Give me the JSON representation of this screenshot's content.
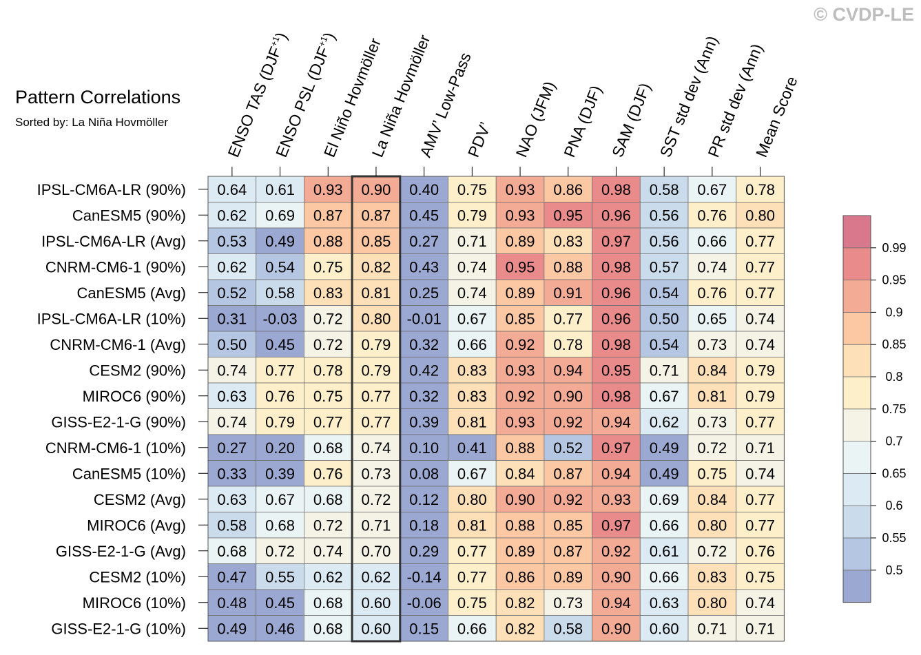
{
  "header": {
    "title": "Pattern Correlations",
    "subtitle": "Sorted by: La Niña Hovmöller",
    "watermark": "© CVDP-LE"
  },
  "chart_data": {
    "type": "heatmap",
    "title": "Pattern Correlations",
    "subtitle": "Sorted by: La Niña Hovmöller",
    "columns": [
      {
        "base": "ENSO TAS (DJF",
        "sup": "+1",
        "end": ")"
      },
      {
        "base": "ENSO PSL (DJF",
        "sup": "+1",
        "end": ")"
      },
      {
        "base": "El Niño Hovmöller"
      },
      {
        "base": "La Niña Hovmöller"
      },
      {
        "base": "AMV’ Low-Pass"
      },
      {
        "base": "PDV’"
      },
      {
        "base": "NAO (JFM)"
      },
      {
        "base": "PNA (DJF)"
      },
      {
        "base": "SAM (DJF)"
      },
      {
        "base": "SST std dev (Ann)"
      },
      {
        "base": "PR std dev (Ann)"
      },
      {
        "base": "Mean Score"
      }
    ],
    "highlighted_column": "La Niña Hovmöller",
    "rows": [
      "IPSL-CM6A-LR (90%)",
      "CanESM5 (90%)",
      "IPSL-CM6A-LR (Avg)",
      "CNRM-CM6-1 (90%)",
      "CanESM5 (Avg)",
      "IPSL-CM6A-LR (10%)",
      "CNRM-CM6-1 (Avg)",
      "CESM2 (90%)",
      "MIROC6 (90%)",
      "GISS-E2-1-G (90%)",
      "CNRM-CM6-1 (10%)",
      "CanESM5 (10%)",
      "CESM2 (Avg)",
      "MIROC6 (Avg)",
      "GISS-E2-1-G (Avg)",
      "CESM2 (10%)",
      "MIROC6 (10%)",
      "GISS-E2-1-G (10%)"
    ],
    "values": [
      [
        0.64,
        0.61,
        0.93,
        0.9,
        0.4,
        0.75,
        0.93,
        0.86,
        0.98,
        0.58,
        0.67,
        0.78
      ],
      [
        0.62,
        0.69,
        0.87,
        0.87,
        0.45,
        0.79,
        0.93,
        0.95,
        0.96,
        0.56,
        0.76,
        0.8
      ],
      [
        0.53,
        0.49,
        0.88,
        0.85,
        0.27,
        0.71,
        0.89,
        0.83,
        0.97,
        0.56,
        0.66,
        0.77
      ],
      [
        0.62,
        0.54,
        0.75,
        0.82,
        0.43,
        0.74,
        0.95,
        0.88,
        0.98,
        0.57,
        0.74,
        0.77
      ],
      [
        0.52,
        0.58,
        0.83,
        0.81,
        0.25,
        0.74,
        0.89,
        0.91,
        0.96,
        0.54,
        0.76,
        0.77
      ],
      [
        0.31,
        -0.03,
        0.72,
        0.8,
        -0.01,
        0.67,
        0.85,
        0.77,
        0.96,
        0.5,
        0.65,
        0.74
      ],
      [
        0.5,
        0.45,
        0.72,
        0.79,
        0.32,
        0.66,
        0.92,
        0.78,
        0.98,
        0.54,
        0.73,
        0.74
      ],
      [
        0.74,
        0.77,
        0.78,
        0.79,
        0.42,
        0.83,
        0.93,
        0.94,
        0.95,
        0.71,
        0.84,
        0.79
      ],
      [
        0.63,
        0.76,
        0.75,
        0.77,
        0.32,
        0.83,
        0.92,
        0.9,
        0.98,
        0.67,
        0.81,
        0.79
      ],
      [
        0.74,
        0.79,
        0.77,
        0.77,
        0.39,
        0.81,
        0.93,
        0.92,
        0.94,
        0.62,
        0.73,
        0.77
      ],
      [
        0.27,
        0.2,
        0.68,
        0.74,
        0.1,
        0.41,
        0.88,
        0.52,
        0.97,
        0.49,
        0.72,
        0.71
      ],
      [
        0.33,
        0.39,
        0.76,
        0.73,
        0.08,
        0.67,
        0.84,
        0.87,
        0.94,
        0.49,
        0.75,
        0.74
      ],
      [
        0.63,
        0.67,
        0.68,
        0.72,
        0.12,
        0.8,
        0.9,
        0.92,
        0.93,
        0.69,
        0.84,
        0.77
      ],
      [
        0.58,
        0.68,
        0.72,
        0.71,
        0.18,
        0.81,
        0.88,
        0.85,
        0.97,
        0.66,
        0.8,
        0.77
      ],
      [
        0.68,
        0.72,
        0.74,
        0.7,
        0.29,
        0.77,
        0.89,
        0.87,
        0.92,
        0.61,
        0.72,
        0.76
      ],
      [
        0.47,
        0.55,
        0.62,
        0.62,
        -0.14,
        0.77,
        0.86,
        0.89,
        0.9,
        0.66,
        0.83,
        0.75
      ],
      [
        0.48,
        0.45,
        0.68,
        0.6,
        -0.06,
        0.75,
        0.82,
        0.73,
        0.94,
        0.63,
        0.8,
        0.74
      ],
      [
        0.49,
        0.46,
        0.68,
        0.6,
        0.15,
        0.66,
        0.82,
        0.58,
        0.9,
        0.6,
        0.71,
        0.71
      ]
    ],
    "value_labels": [
      [
        "0.64",
        "0.61",
        "0.93",
        "0.90",
        "0.40",
        "0.75",
        "0.93",
        "0.86",
        "0.98",
        "0.58",
        "0.67",
        "0.78"
      ],
      [
        "0.62",
        "0.69",
        "0.87",
        "0.87",
        "0.45",
        "0.79",
        "0.93",
        "0.95",
        "0.96",
        "0.56",
        "0.76",
        "0.80"
      ],
      [
        "0.53",
        "0.49",
        "0.88",
        "0.85",
        "0.27",
        "0.71",
        "0.89",
        "0.83",
        "0.97",
        "0.56",
        "0.66",
        "0.77"
      ],
      [
        "0.62",
        "0.54",
        "0.75",
        "0.82",
        "0.43",
        "0.74",
        "0.95",
        "0.88",
        "0.98",
        "0.57",
        "0.74",
        "0.77"
      ],
      [
        "0.52",
        "0.58",
        "0.83",
        "0.81",
        "0.25",
        "0.74",
        "0.89",
        "0.91",
        "0.96",
        "0.54",
        "0.76",
        "0.77"
      ],
      [
        "0.31",
        "-0.03",
        "0.72",
        "0.80",
        "-0.01",
        "0.67",
        "0.85",
        "0.77",
        "0.96",
        "0.50",
        "0.65",
        "0.74"
      ],
      [
        "0.50",
        "0.45",
        "0.72",
        "0.79",
        "0.32",
        "0.66",
        "0.92",
        "0.78",
        "0.98",
        "0.54",
        "0.73",
        "0.74"
      ],
      [
        "0.74",
        "0.77",
        "0.78",
        "0.79",
        "0.42",
        "0.83",
        "0.93",
        "0.94",
        "0.95",
        "0.71",
        "0.84",
        "0.79"
      ],
      [
        "0.63",
        "0.76",
        "0.75",
        "0.77",
        "0.32",
        "0.83",
        "0.92",
        "0.90",
        "0.98",
        "0.67",
        "0.81",
        "0.79"
      ],
      [
        "0.74",
        "0.79",
        "0.77",
        "0.77",
        "0.39",
        "0.81",
        "0.93",
        "0.92",
        "0.94",
        "0.62",
        "0.73",
        "0.77"
      ],
      [
        "0.27",
        "0.20",
        "0.68",
        "0.74",
        "0.10",
        "0.41",
        "0.88",
        "0.52",
        "0.97",
        "0.49",
        "0.72",
        "0.71"
      ],
      [
        "0.33",
        "0.39",
        "0.76",
        "0.73",
        "0.08",
        "0.67",
        "0.84",
        "0.87",
        "0.94",
        "0.49",
        "0.75",
        "0.74"
      ],
      [
        "0.63",
        "0.67",
        "0.68",
        "0.72",
        "0.12",
        "0.80",
        "0.90",
        "0.92",
        "0.93",
        "0.69",
        "0.84",
        "0.77"
      ],
      [
        "0.58",
        "0.68",
        "0.72",
        "0.71",
        "0.18",
        "0.81",
        "0.88",
        "0.85",
        "0.97",
        "0.66",
        "0.80",
        "0.77"
      ],
      [
        "0.68",
        "0.72",
        "0.74",
        "0.70",
        "0.29",
        "0.77",
        "0.89",
        "0.87",
        "0.92",
        "0.61",
        "0.72",
        "0.76"
      ],
      [
        "0.47",
        "0.55",
        "0.62",
        "0.62",
        "-0.14",
        "0.77",
        "0.86",
        "0.89",
        "0.90",
        "0.66",
        "0.83",
        "0.75"
      ],
      [
        "0.48",
        "0.45",
        "0.68",
        "0.60",
        "-0.06",
        "0.75",
        "0.82",
        "0.73",
        "0.94",
        "0.63",
        "0.80",
        "0.74"
      ],
      [
        "0.49",
        "0.46",
        "0.68",
        "0.60",
        "0.15",
        "0.66",
        "0.82",
        "0.58",
        "0.90",
        "0.60",
        "0.71",
        "0.71"
      ]
    ],
    "colorbar": {
      "levels": [
        0.5,
        0.55,
        0.6,
        0.65,
        0.7,
        0.75,
        0.8,
        0.85,
        0.9,
        0.95,
        0.99
      ],
      "tick_labels": [
        "0.5",
        "0.55",
        "0.6",
        "0.65",
        "0.7",
        "0.75",
        "0.8",
        "0.85",
        "0.9",
        "0.95",
        "0.99"
      ],
      "colors": [
        "#9aa8d2",
        "#b4c6e2",
        "#cadcec",
        "#dcebf3",
        "#ebf4f5",
        "#f4f3e6",
        "#fdefc9",
        "#fde0b8",
        "#fbc8a3",
        "#f4ab95",
        "#ea8b8b",
        "#d9788c"
      ]
    }
  }
}
